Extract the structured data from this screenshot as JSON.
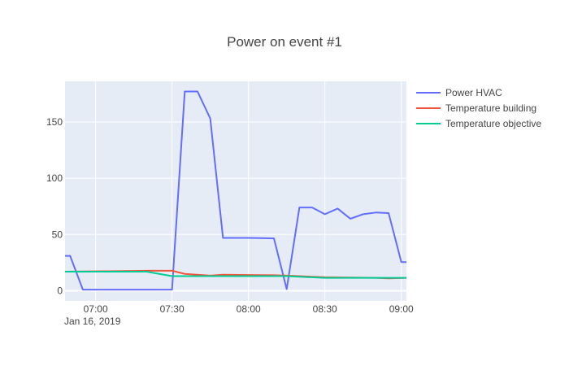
{
  "chart_data": {
    "type": "line",
    "title": "Power on event #1",
    "xlabel": "",
    "ylabel": "",
    "x_axis": {
      "type": "date",
      "range": [
        "2019-01-16 06:48",
        "2019-01-16 09:02"
      ],
      "ticks": [
        {
          "value": "2019-01-16 07:00",
          "label": "07:00",
          "sublabel": "Jan 16, 2019"
        },
        {
          "value": "2019-01-16 07:30",
          "label": "07:30",
          "sublabel": ""
        },
        {
          "value": "2019-01-16 08:00",
          "label": "08:00",
          "sublabel": ""
        },
        {
          "value": "2019-01-16 08:30",
          "label": "08:30",
          "sublabel": ""
        },
        {
          "value": "2019-01-16 09:00",
          "label": "09:00",
          "sublabel": ""
        }
      ]
    },
    "y_axis": {
      "range": [
        -9,
        186
      ],
      "ticks": [
        0,
        50,
        100,
        150
      ]
    },
    "grid": true,
    "legend_position": "top-right",
    "series": [
      {
        "name": "Power HVAC",
        "color": "#636efa",
        "points": [
          [
            "2019-01-16 06:48",
            31
          ],
          [
            "2019-01-16 06:50",
            31
          ],
          [
            "2019-01-16 06:55",
            1
          ],
          [
            "2019-01-16 07:00",
            1
          ],
          [
            "2019-01-16 07:05",
            1
          ],
          [
            "2019-01-16 07:10",
            1
          ],
          [
            "2019-01-16 07:15",
            1
          ],
          [
            "2019-01-16 07:20",
            1
          ],
          [
            "2019-01-16 07:25",
            1
          ],
          [
            "2019-01-16 07:30",
            1
          ],
          [
            "2019-01-16 07:35",
            177
          ],
          [
            "2019-01-16 07:40",
            177
          ],
          [
            "2019-01-16 07:45",
            153
          ],
          [
            "2019-01-16 07:50",
            47
          ],
          [
            "2019-01-16 07:55",
            47
          ],
          [
            "2019-01-16 08:00",
            47
          ],
          [
            "2019-01-16 08:05",
            46.8
          ],
          [
            "2019-01-16 08:10",
            46.5
          ],
          [
            "2019-01-16 08:15",
            1.5
          ],
          [
            "2019-01-16 08:20",
            74
          ],
          [
            "2019-01-16 08:25",
            74
          ],
          [
            "2019-01-16 08:30",
            68
          ],
          [
            "2019-01-16 08:35",
            73
          ],
          [
            "2019-01-16 08:40",
            64
          ],
          [
            "2019-01-16 08:45",
            68
          ],
          [
            "2019-01-16 08:50",
            69.5
          ],
          [
            "2019-01-16 08:55",
            69
          ],
          [
            "2019-01-16 09:00",
            25.5
          ],
          [
            "2019-01-16 09:02",
            25.5
          ]
        ]
      },
      {
        "name": "Temperature building",
        "color": "#ef553b",
        "points": [
          [
            "2019-01-16 06:48",
            17
          ],
          [
            "2019-01-16 06:55",
            17.2
          ],
          [
            "2019-01-16 07:05",
            17.4
          ],
          [
            "2019-01-16 07:15",
            17.6
          ],
          [
            "2019-01-16 07:20",
            17.8
          ],
          [
            "2019-01-16 07:30",
            17.8
          ],
          [
            "2019-01-16 07:35",
            15
          ],
          [
            "2019-01-16 07:45",
            13.5
          ],
          [
            "2019-01-16 07:50",
            14.3
          ],
          [
            "2019-01-16 08:00",
            14
          ],
          [
            "2019-01-16 08:10",
            13.8
          ],
          [
            "2019-01-16 08:15",
            13.5
          ],
          [
            "2019-01-16 08:25",
            12.5
          ],
          [
            "2019-01-16 08:30",
            12
          ],
          [
            "2019-01-16 08:40",
            11.8
          ],
          [
            "2019-01-16 08:50",
            11.5
          ],
          [
            "2019-01-16 08:55",
            11
          ],
          [
            "2019-01-16 09:02",
            11.5
          ]
        ]
      },
      {
        "name": "Temperature objective",
        "color": "#00cc96",
        "points": [
          [
            "2019-01-16 06:48",
            17
          ],
          [
            "2019-01-16 06:55",
            17
          ],
          [
            "2019-01-16 07:20",
            17
          ],
          [
            "2019-01-16 07:30",
            13
          ],
          [
            "2019-01-16 08:10",
            13
          ],
          [
            "2019-01-16 08:15",
            13
          ],
          [
            "2019-01-16 08:30",
            11.5
          ],
          [
            "2019-01-16 09:02",
            11.5
          ]
        ]
      }
    ]
  }
}
